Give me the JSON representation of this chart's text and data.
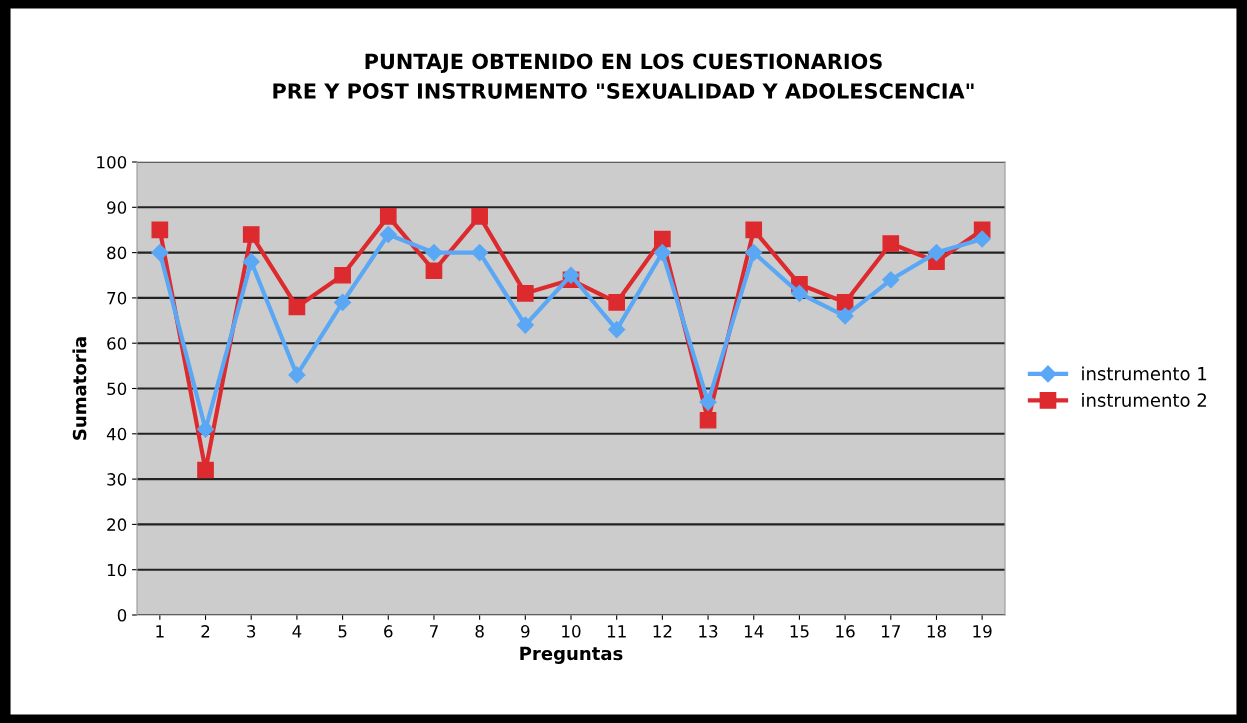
{
  "chart_data": {
    "type": "line",
    "title": "PUNTAJE OBTENIDO EN LOS CUESTIONARIOS\nPRE Y POST INSTRUMENTO \"SEXUALIDAD Y ADOLESCENCIA\"",
    "xlabel": "Preguntas",
    "ylabel": "Sumatoria",
    "categories": [
      "1",
      "2",
      "3",
      "4",
      "5",
      "6",
      "7",
      "8",
      "9",
      "10",
      "11",
      "12",
      "13",
      "14",
      "15",
      "16",
      "17",
      "18",
      "19"
    ],
    "series": [
      {
        "name": "instrumento 1",
        "color": "#5aa8f5",
        "marker": "diamond",
        "values": [
          80,
          41,
          78,
          53,
          69,
          84,
          80,
          80,
          64,
          75,
          63,
          80,
          47,
          80,
          71,
          66,
          74,
          80,
          83
        ]
      },
      {
        "name": "instrumento 2",
        "color": "#dd2a2e",
        "marker": "square",
        "values": [
          85,
          32,
          84,
          68,
          75,
          88,
          76,
          88,
          71,
          74,
          69,
          83,
          43,
          85,
          73,
          69,
          82,
          78,
          85
        ]
      }
    ],
    "ylim": [
      0,
      100
    ],
    "yticks": [
      0,
      10,
      20,
      30,
      40,
      50,
      60,
      70,
      80,
      90,
      100
    ],
    "grid": "y",
    "legend": "right",
    "line_style": "solid"
  }
}
